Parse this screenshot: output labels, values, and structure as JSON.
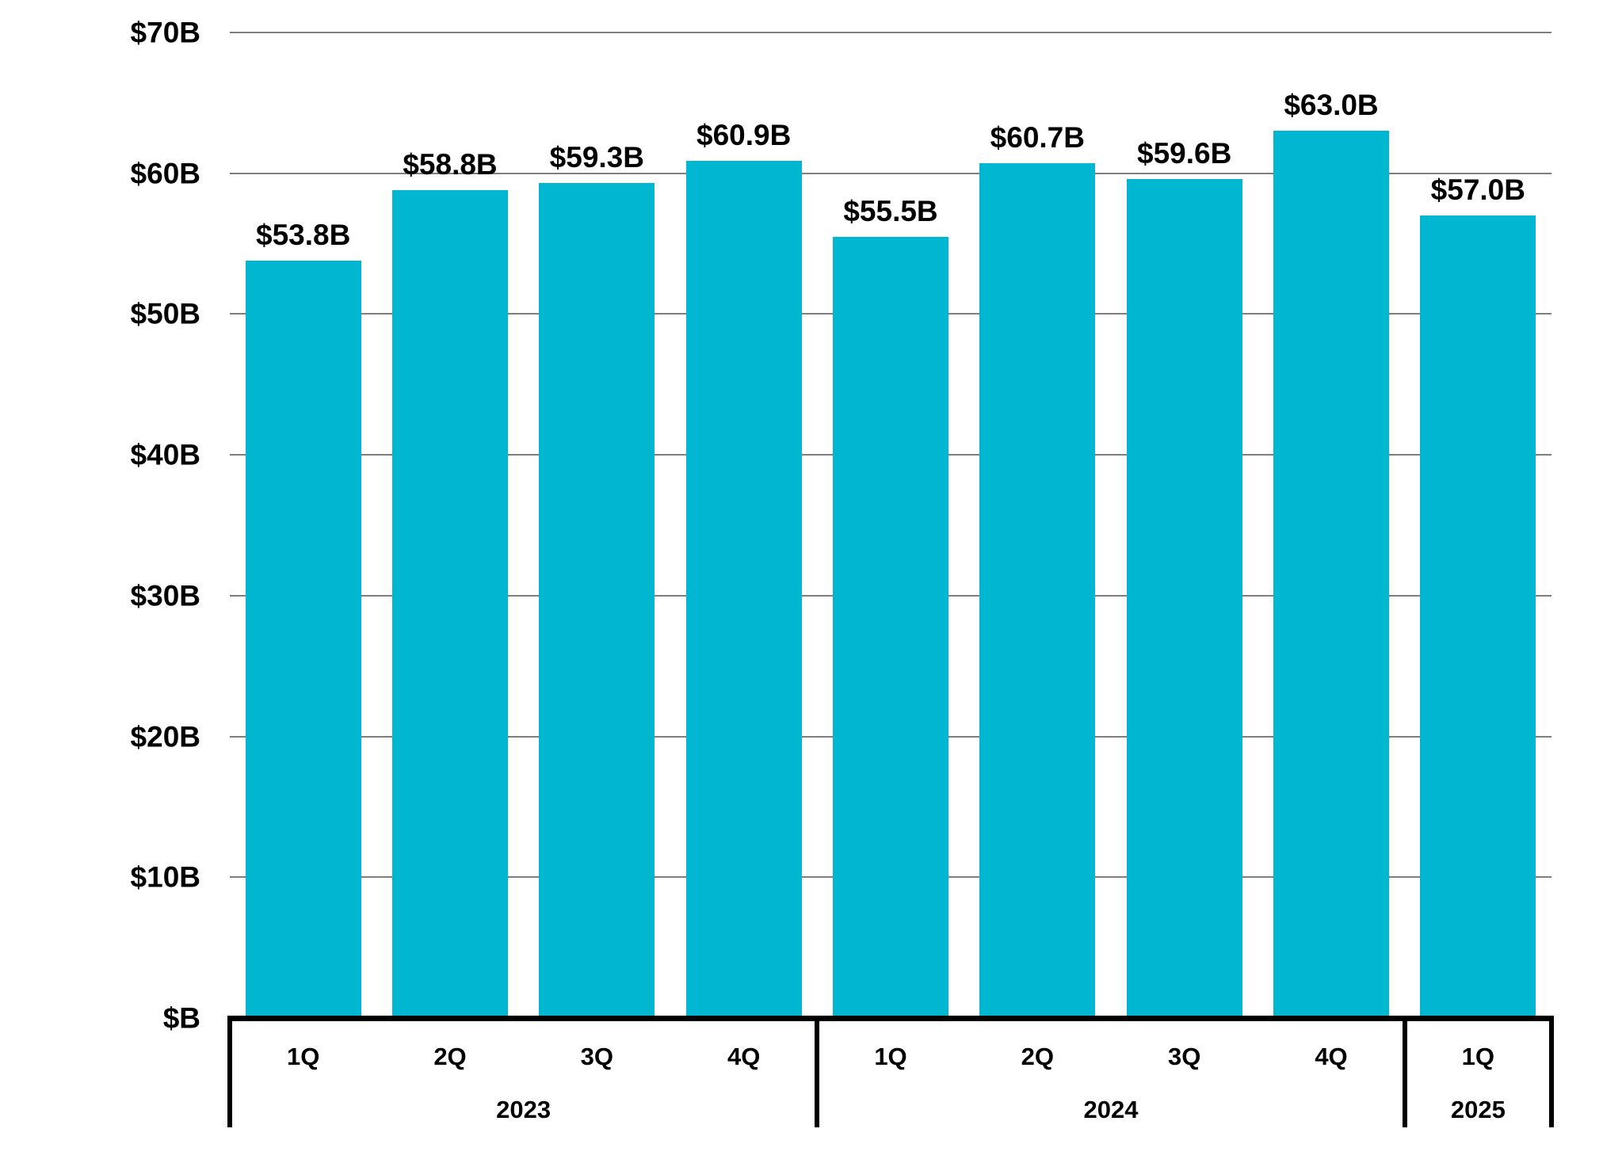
{
  "chart_data": {
    "type": "bar",
    "title": "",
    "unit": "USD billions per quarter",
    "legend": "none",
    "grid": "horizontal",
    "ylim": [
      0,
      70
    ],
    "bar_color": "#00b6d1",
    "gridline_color": "#7f7f7f",
    "axis_color": "#000000",
    "label_color": "#000000",
    "y_ticks": [
      {
        "value": 70,
        "label": "$70B"
      },
      {
        "value": 60,
        "label": "$60B"
      },
      {
        "value": 50,
        "label": "$50B"
      },
      {
        "value": 40,
        "label": "$40B"
      },
      {
        "value": 30,
        "label": "$30B"
      },
      {
        "value": 20,
        "label": "$20B"
      },
      {
        "value": 10,
        "label": "$10B"
      },
      {
        "value": 0,
        "label": "$B"
      }
    ],
    "bars": [
      {
        "quarter": "1Q",
        "year": "2023",
        "value": 53.8,
        "label": "$53.8B"
      },
      {
        "quarter": "2Q",
        "year": "2023",
        "value": 58.8,
        "label": "$58.8B"
      },
      {
        "quarter": "3Q",
        "year": "2023",
        "value": 59.3,
        "label": "$59.3B"
      },
      {
        "quarter": "4Q",
        "year": "2023",
        "value": 60.9,
        "label": "$60.9B"
      },
      {
        "quarter": "1Q",
        "year": "2024",
        "value": 55.5,
        "label": "$55.5B"
      },
      {
        "quarter": "2Q",
        "year": "2024",
        "value": 60.7,
        "label": "$60.7B"
      },
      {
        "quarter": "3Q",
        "year": "2024",
        "value": 59.6,
        "label": "$59.6B"
      },
      {
        "quarter": "4Q",
        "year": "2024",
        "value": 63.0,
        "label": "$63.0B"
      },
      {
        "quarter": "1Q",
        "year": "2025",
        "value": 57.0,
        "label": "$57.0B"
      }
    ],
    "groups": [
      {
        "year": "2023",
        "quarters": [
          "1Q",
          "2Q",
          "3Q",
          "4Q"
        ]
      },
      {
        "year": "2024",
        "quarters": [
          "1Q",
          "2Q",
          "3Q",
          "4Q"
        ]
      },
      {
        "year": "2025",
        "quarters": [
          "1Q"
        ]
      }
    ]
  }
}
